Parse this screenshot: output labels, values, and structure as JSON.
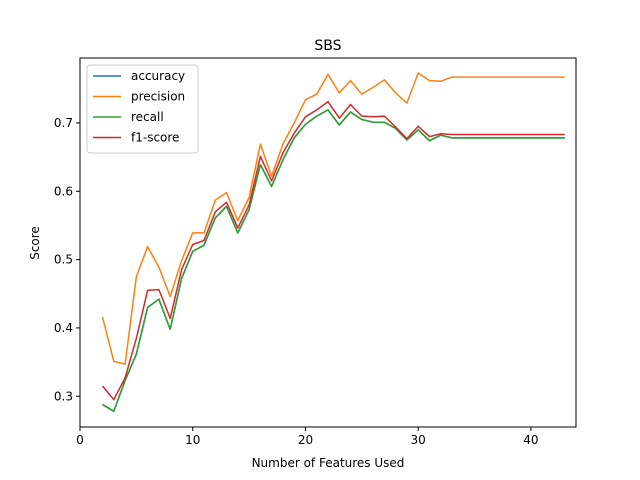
{
  "chart_data": {
    "type": "line",
    "title": "SBS",
    "xlabel": "Number of Features Used",
    "ylabel": "Score",
    "xlim": [
      0.0,
      44.0
    ],
    "ylim": [
      0.255,
      0.795
    ],
    "xticks": [
      0,
      10,
      20,
      30,
      40
    ],
    "yticks": [
      0.3,
      0.4,
      0.5,
      0.6,
      0.7
    ],
    "legend": "upper-left",
    "grid": false,
    "x": [
      2,
      3,
      4,
      5,
      6,
      7,
      8,
      9,
      10,
      11,
      12,
      13,
      14,
      15,
      16,
      17,
      18,
      19,
      20,
      21,
      22,
      23,
      24,
      25,
      26,
      27,
      28,
      29,
      30,
      31,
      32,
      33,
      34,
      35,
      36,
      37,
      38,
      39,
      40,
      41,
      42,
      43
    ],
    "series": [
      {
        "name": "accuracy",
        "color": "#1f77b4",
        "values": [
          0.288,
          0.278,
          0.323,
          0.362,
          0.43,
          0.442,
          0.398,
          0.472,
          0.512,
          0.521,
          0.561,
          0.578,
          0.539,
          0.573,
          0.639,
          0.607,
          0.646,
          0.678,
          0.698,
          0.71,
          0.719,
          0.697,
          0.716,
          0.705,
          0.701,
          0.701,
          0.692,
          0.675,
          0.69,
          0.674,
          0.682,
          0.678,
          0.678,
          0.678,
          0.678,
          0.678,
          0.678,
          0.678,
          0.678,
          0.678,
          0.678,
          0.678
        ]
      },
      {
        "name": "precision",
        "color": "#ff7f0e",
        "values": [
          0.416,
          0.351,
          0.347,
          0.475,
          0.519,
          0.489,
          0.446,
          0.498,
          0.539,
          0.539,
          0.587,
          0.598,
          0.557,
          0.591,
          0.669,
          0.622,
          0.669,
          0.7,
          0.734,
          0.742,
          0.771,
          0.744,
          0.762,
          0.742,
          0.752,
          0.763,
          0.744,
          0.729,
          0.773,
          0.762,
          0.761,
          0.767,
          0.767,
          0.767,
          0.767,
          0.767,
          0.767,
          0.767,
          0.767,
          0.767,
          0.767,
          0.767
        ]
      },
      {
        "name": "recall",
        "color": "#2ca02c",
        "values": [
          0.288,
          0.278,
          0.323,
          0.362,
          0.43,
          0.442,
          0.398,
          0.472,
          0.512,
          0.521,
          0.561,
          0.578,
          0.539,
          0.573,
          0.639,
          0.607,
          0.646,
          0.678,
          0.698,
          0.71,
          0.719,
          0.697,
          0.716,
          0.705,
          0.701,
          0.701,
          0.692,
          0.675,
          0.69,
          0.674,
          0.682,
          0.678,
          0.678,
          0.678,
          0.678,
          0.678,
          0.678,
          0.678,
          0.678,
          0.678,
          0.678,
          0.678
        ]
      },
      {
        "name": "f1-score",
        "color": "#d62728",
        "values": [
          0.315,
          0.295,
          0.327,
          0.385,
          0.455,
          0.456,
          0.414,
          0.485,
          0.522,
          0.528,
          0.57,
          0.584,
          0.546,
          0.58,
          0.651,
          0.615,
          0.656,
          0.685,
          0.709,
          0.719,
          0.731,
          0.707,
          0.727,
          0.71,
          0.709,
          0.71,
          0.694,
          0.677,
          0.695,
          0.68,
          0.684,
          0.683,
          0.683,
          0.683,
          0.683,
          0.683,
          0.683,
          0.683,
          0.683,
          0.683,
          0.683,
          0.683
        ]
      }
    ]
  }
}
